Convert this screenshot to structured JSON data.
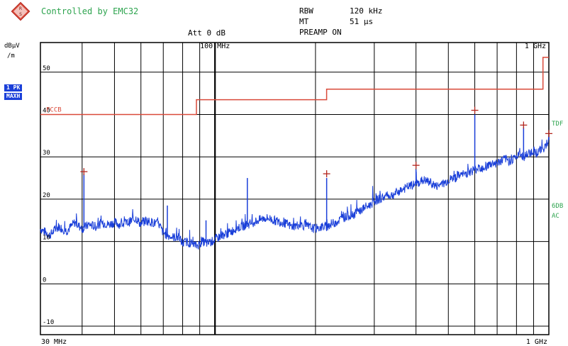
{
  "header": {
    "title": "Controlled by EMC32",
    "att": "Att 0 dB",
    "rbw_label": "RBW",
    "rbw_value": "120 kHz",
    "mt_label": "MT",
    "mt_value": "51 µs",
    "preamp": "PREAMP ON"
  },
  "side": {
    "unit_line1": "dBµV",
    "unit_line2": "/m",
    "trace_badge": "1 PK",
    "mode_badge": "MAXH",
    "right_label_top": "TDF",
    "right_label_6db": "6DB",
    "right_label_ac": "AC"
  },
  "colors": {
    "trace": "#1a3fd9",
    "limit": "#d94a3a",
    "marker": "#b3261e",
    "grid": "#000000",
    "green_text": "#2ea44f"
  },
  "chart_data": {
    "type": "line",
    "x_scale": "log",
    "x_unit": "MHz",
    "xlim": [
      30,
      1000
    ],
    "ylim": [
      -12,
      57
    ],
    "yticks": [
      -10,
      0,
      10,
      20,
      30,
      40,
      50
    ],
    "ytick_labels": [
      "-10",
      "0",
      "10",
      "20",
      "30",
      "40",
      "50"
    ],
    "grid": true,
    "x_label_left": "30 MHz",
    "x_label_right": "1 GHz",
    "x_label_top_mid": "100 MHz",
    "x_label_top_right": "1 GHz",
    "limit_label": "FCCB",
    "limit_line": {
      "name": "FCCB",
      "x": [
        30,
        88,
        88,
        216,
        216,
        960,
        960,
        1000
      ],
      "y": [
        40,
        40,
        43.5,
        43.5,
        46,
        46,
        53.5,
        53.5
      ]
    },
    "trace": {
      "name": "1 PK MAXH",
      "x": [
        30,
        32,
        34,
        36,
        38,
        40,
        42,
        44,
        46,
        48,
        50,
        52,
        55,
        58,
        60,
        62,
        65,
        68,
        70,
        72,
        75,
        78,
        80,
        82,
        85,
        88,
        90,
        92,
        95,
        98,
        100,
        105,
        110,
        115,
        120,
        125,
        130,
        135,
        140,
        145,
        150,
        160,
        170,
        180,
        190,
        200,
        210,
        216,
        220,
        230,
        240,
        250,
        260,
        270,
        280,
        290,
        300,
        320,
        340,
        360,
        380,
        400,
        420,
        440,
        460,
        480,
        500,
        520,
        540,
        560,
        580,
        600,
        620,
        640,
        660,
        680,
        700,
        720,
        740,
        760,
        780,
        800,
        820,
        840,
        860,
        880,
        900,
        920,
        940,
        960,
        980,
        1000
      ],
      "y": [
        13,
        11.5,
        13.5,
        12.5,
        14.5,
        13,
        14,
        13.5,
        14.5,
        14,
        14.5,
        14,
        14.5,
        15.5,
        14,
        15,
        14.5,
        14,
        12,
        11.5,
        11,
        11,
        9.5,
        10,
        9.5,
        9,
        9.5,
        10,
        9.5,
        10,
        10.5,
        11.5,
        12,
        13,
        13.5,
        14,
        14.5,
        15,
        15.5,
        15.5,
        15,
        14.5,
        13.5,
        14,
        13.5,
        13,
        13.5,
        13.5,
        14,
        14.5,
        15.5,
        16,
        16.5,
        17,
        18,
        18.5,
        19.5,
        20.5,
        21,
        22,
        23,
        23.5,
        24.5,
        24,
        23,
        23.5,
        24.5,
        25,
        25.5,
        26,
        26.5,
        27,
        27.5,
        27.5,
        28,
        28.5,
        28.5,
        29,
        29.5,
        29,
        29.5,
        30,
        30.5,
        30,
        30.5,
        31,
        31.5,
        31,
        31.5,
        32,
        32.5,
        34
      ]
    },
    "spikes": [
      {
        "x": 40.5,
        "y": 26
      },
      {
        "x": 72,
        "y": 18.5
      },
      {
        "x": 94,
        "y": 15
      },
      {
        "x": 125,
        "y": 25
      },
      {
        "x": 216,
        "y": 25
      },
      {
        "x": 400,
        "y": 27
      },
      {
        "x": 600,
        "y": 40
      },
      {
        "x": 840,
        "y": 37
      },
      {
        "x": 1000,
        "y": 35
      }
    ],
    "markers": [
      {
        "x": 40.5,
        "y": 26.5
      },
      {
        "x": 216,
        "y": 26
      },
      {
        "x": 400,
        "y": 28
      },
      {
        "x": 600,
        "y": 41
      },
      {
        "x": 840,
        "y": 37.5
      },
      {
        "x": 1000,
        "y": 35.5
      }
    ]
  }
}
